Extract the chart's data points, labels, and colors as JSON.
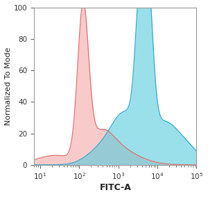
{
  "title": "",
  "xlabel": "FITC-A",
  "ylabel": "Normalized To Mode",
  "xlim": [
    7,
    100000
  ],
  "ylim": [
    0,
    100
  ],
  "yticks": [
    0,
    20,
    40,
    60,
    80,
    100
  ],
  "red_fill_color": "#F4A0A0",
  "red_line_color": "#E07070",
  "blue_fill_color": "#55CCDD",
  "blue_line_color": "#33AACC",
  "bg_color": "#FFFFFF",
  "font_size": 8,
  "label_font_size": 9,
  "figsize": [
    3.0,
    2.83
  ],
  "dpi": 100
}
